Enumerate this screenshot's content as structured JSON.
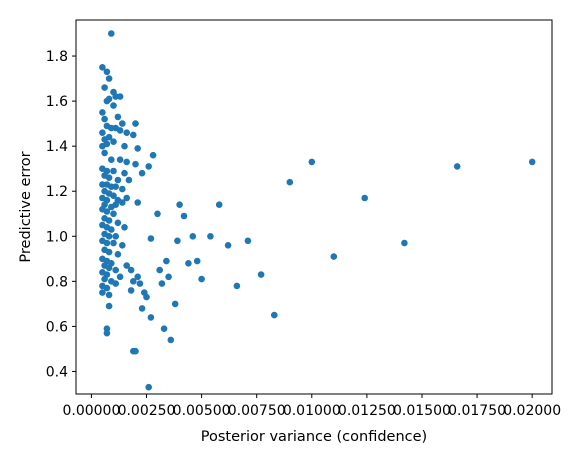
{
  "chart_data": {
    "type": "scatter",
    "title": "",
    "xlabel": "Posterior variance (confidence)",
    "ylabel": "Predictive error",
    "xlim": [
      -0.0007,
      0.0209
    ],
    "ylim": [
      0.3,
      1.96
    ],
    "xticks": [
      0.0,
      0.0025,
      0.005,
      0.0075,
      0.01,
      0.0125,
      0.015,
      0.0175,
      0.02
    ],
    "xtick_labels": [
      "0.00000",
      "0.00250",
      "0.00500",
      "0.00750",
      "0.01000",
      "0.01250",
      "0.01500",
      "0.01750",
      "0.02000"
    ],
    "yticks": [
      0.4,
      0.6,
      0.8,
      1.0,
      1.2,
      1.4,
      1.6,
      1.8
    ],
    "ytick_labels": [
      "0.4",
      "0.6",
      "0.8",
      "1.0",
      "1.2",
      "1.4",
      "1.6",
      "1.8"
    ],
    "grid": false,
    "legend": "none",
    "color": "#1f77b4",
    "points": [
      [
        0.0009,
        1.9
      ],
      [
        0.0005,
        1.75
      ],
      [
        0.0007,
        1.73
      ],
      [
        0.0008,
        1.7
      ],
      [
        0.0006,
        1.66
      ],
      [
        0.001,
        1.64
      ],
      [
        0.0011,
        1.62
      ],
      [
        0.0013,
        1.62
      ],
      [
        0.0007,
        1.6
      ],
      [
        0.0008,
        1.61
      ],
      [
        0.0005,
        1.55
      ],
      [
        0.001,
        1.58
      ],
      [
        0.0012,
        1.53
      ],
      [
        0.0006,
        1.52
      ],
      [
        0.0014,
        1.5
      ],
      [
        0.002,
        1.5
      ],
      [
        0.0007,
        1.49
      ],
      [
        0.0009,
        1.48
      ],
      [
        0.0011,
        1.48
      ],
      [
        0.0005,
        1.46
      ],
      [
        0.0013,
        1.47
      ],
      [
        0.0016,
        1.46
      ],
      [
        0.0019,
        1.45
      ],
      [
        0.0006,
        1.43
      ],
      [
        0.0008,
        1.44
      ],
      [
        0.0005,
        1.4
      ],
      [
        0.0007,
        1.41
      ],
      [
        0.001,
        1.42
      ],
      [
        0.0015,
        1.4
      ],
      [
        0.0021,
        1.39
      ],
      [
        0.0028,
        1.36
      ],
      [
        0.0006,
        1.37
      ],
      [
        0.0009,
        1.34
      ],
      [
        0.0013,
        1.34
      ],
      [
        0.0016,
        1.33
      ],
      [
        0.002,
        1.32
      ],
      [
        0.0026,
        1.31
      ],
      [
        0.0005,
        1.3
      ],
      [
        0.0007,
        1.29
      ],
      [
        0.001,
        1.29
      ],
      [
        0.0015,
        1.28
      ],
      [
        0.0023,
        1.28
      ],
      [
        0.0006,
        1.27
      ],
      [
        0.0008,
        1.26
      ],
      [
        0.0012,
        1.25
      ],
      [
        0.0017,
        1.25
      ],
      [
        0.0005,
        1.23
      ],
      [
        0.0007,
        1.23
      ],
      [
        0.0009,
        1.22
      ],
      [
        0.0011,
        1.22
      ],
      [
        0.0014,
        1.21
      ],
      [
        0.0006,
        1.2
      ],
      [
        0.0008,
        1.19
      ],
      [
        0.001,
        1.18
      ],
      [
        0.0005,
        1.17
      ],
      [
        0.0007,
        1.16
      ],
      [
        0.0012,
        1.16
      ],
      [
        0.0016,
        1.17
      ],
      [
        0.0006,
        1.14
      ],
      [
        0.0009,
        1.13
      ],
      [
        0.0011,
        1.14
      ],
      [
        0.0014,
        1.15
      ],
      [
        0.0021,
        1.15
      ],
      [
        0.0005,
        1.12
      ],
      [
        0.0007,
        1.11
      ],
      [
        0.001,
        1.1
      ],
      [
        0.0006,
        1.08
      ],
      [
        0.0008,
        1.07
      ],
      [
        0.0012,
        1.06
      ],
      [
        0.003,
        1.1
      ],
      [
        0.0005,
        1.05
      ],
      [
        0.0007,
        1.04
      ],
      [
        0.0009,
        1.03
      ],
      [
        0.0015,
        1.04
      ],
      [
        0.0006,
        1.01
      ],
      [
        0.0008,
        1.0
      ],
      [
        0.0011,
        1.0
      ],
      [
        0.0005,
        0.98
      ],
      [
        0.0007,
        0.97
      ],
      [
        0.001,
        0.97
      ],
      [
        0.0014,
        0.96
      ],
      [
        0.0006,
        0.94
      ],
      [
        0.0008,
        0.93
      ],
      [
        0.0012,
        0.92
      ],
      [
        0.0005,
        0.9
      ],
      [
        0.0007,
        0.89
      ],
      [
        0.0009,
        0.88
      ],
      [
        0.0006,
        0.87
      ],
      [
        0.0008,
        0.86
      ],
      [
        0.0011,
        0.85
      ],
      [
        0.0005,
        0.84
      ],
      [
        0.0007,
        0.83
      ],
      [
        0.0013,
        0.82
      ],
      [
        0.0006,
        0.81
      ],
      [
        0.0009,
        0.8
      ],
      [
        0.0016,
        0.87
      ],
      [
        0.0018,
        0.85
      ],
      [
        0.0021,
        0.82
      ],
      [
        0.0005,
        0.78
      ],
      [
        0.0007,
        0.77
      ],
      [
        0.0011,
        0.79
      ],
      [
        0.0019,
        0.8
      ],
      [
        0.0022,
        0.79
      ],
      [
        0.0005,
        0.75
      ],
      [
        0.0008,
        0.74
      ],
      [
        0.0018,
        0.76
      ],
      [
        0.0024,
        0.75
      ],
      [
        0.0025,
        0.73
      ],
      [
        0.0008,
        0.69
      ],
      [
        0.0023,
        0.68
      ],
      [
        0.0027,
        0.64
      ],
      [
        0.0007,
        0.59
      ],
      [
        0.0007,
        0.57
      ],
      [
        0.0019,
        0.49
      ],
      [
        0.002,
        0.49
      ],
      [
        0.0026,
        0.33
      ],
      [
        0.0027,
        0.99
      ],
      [
        0.0031,
        0.85
      ],
      [
        0.0032,
        0.79
      ],
      [
        0.0034,
        0.89
      ],
      [
        0.0035,
        0.82
      ],
      [
        0.0033,
        0.59
      ],
      [
        0.0036,
        0.54
      ],
      [
        0.0038,
        0.7
      ],
      [
        0.0039,
        0.98
      ],
      [
        0.004,
        1.14
      ],
      [
        0.0042,
        1.09
      ],
      [
        0.0044,
        0.88
      ],
      [
        0.0046,
        1.0
      ],
      [
        0.0048,
        0.89
      ],
      [
        0.005,
        0.81
      ],
      [
        0.0054,
        1.0
      ],
      [
        0.0058,
        1.14
      ],
      [
        0.0062,
        0.96
      ],
      [
        0.0066,
        0.78
      ],
      [
        0.0071,
        0.98
      ],
      [
        0.0077,
        0.83
      ],
      [
        0.0083,
        0.65
      ],
      [
        0.009,
        1.24
      ],
      [
        0.01,
        1.33
      ],
      [
        0.011,
        0.91
      ],
      [
        0.0124,
        1.17
      ],
      [
        0.0142,
        0.97
      ],
      [
        0.0166,
        1.31
      ],
      [
        0.02,
        1.33
      ]
    ]
  }
}
